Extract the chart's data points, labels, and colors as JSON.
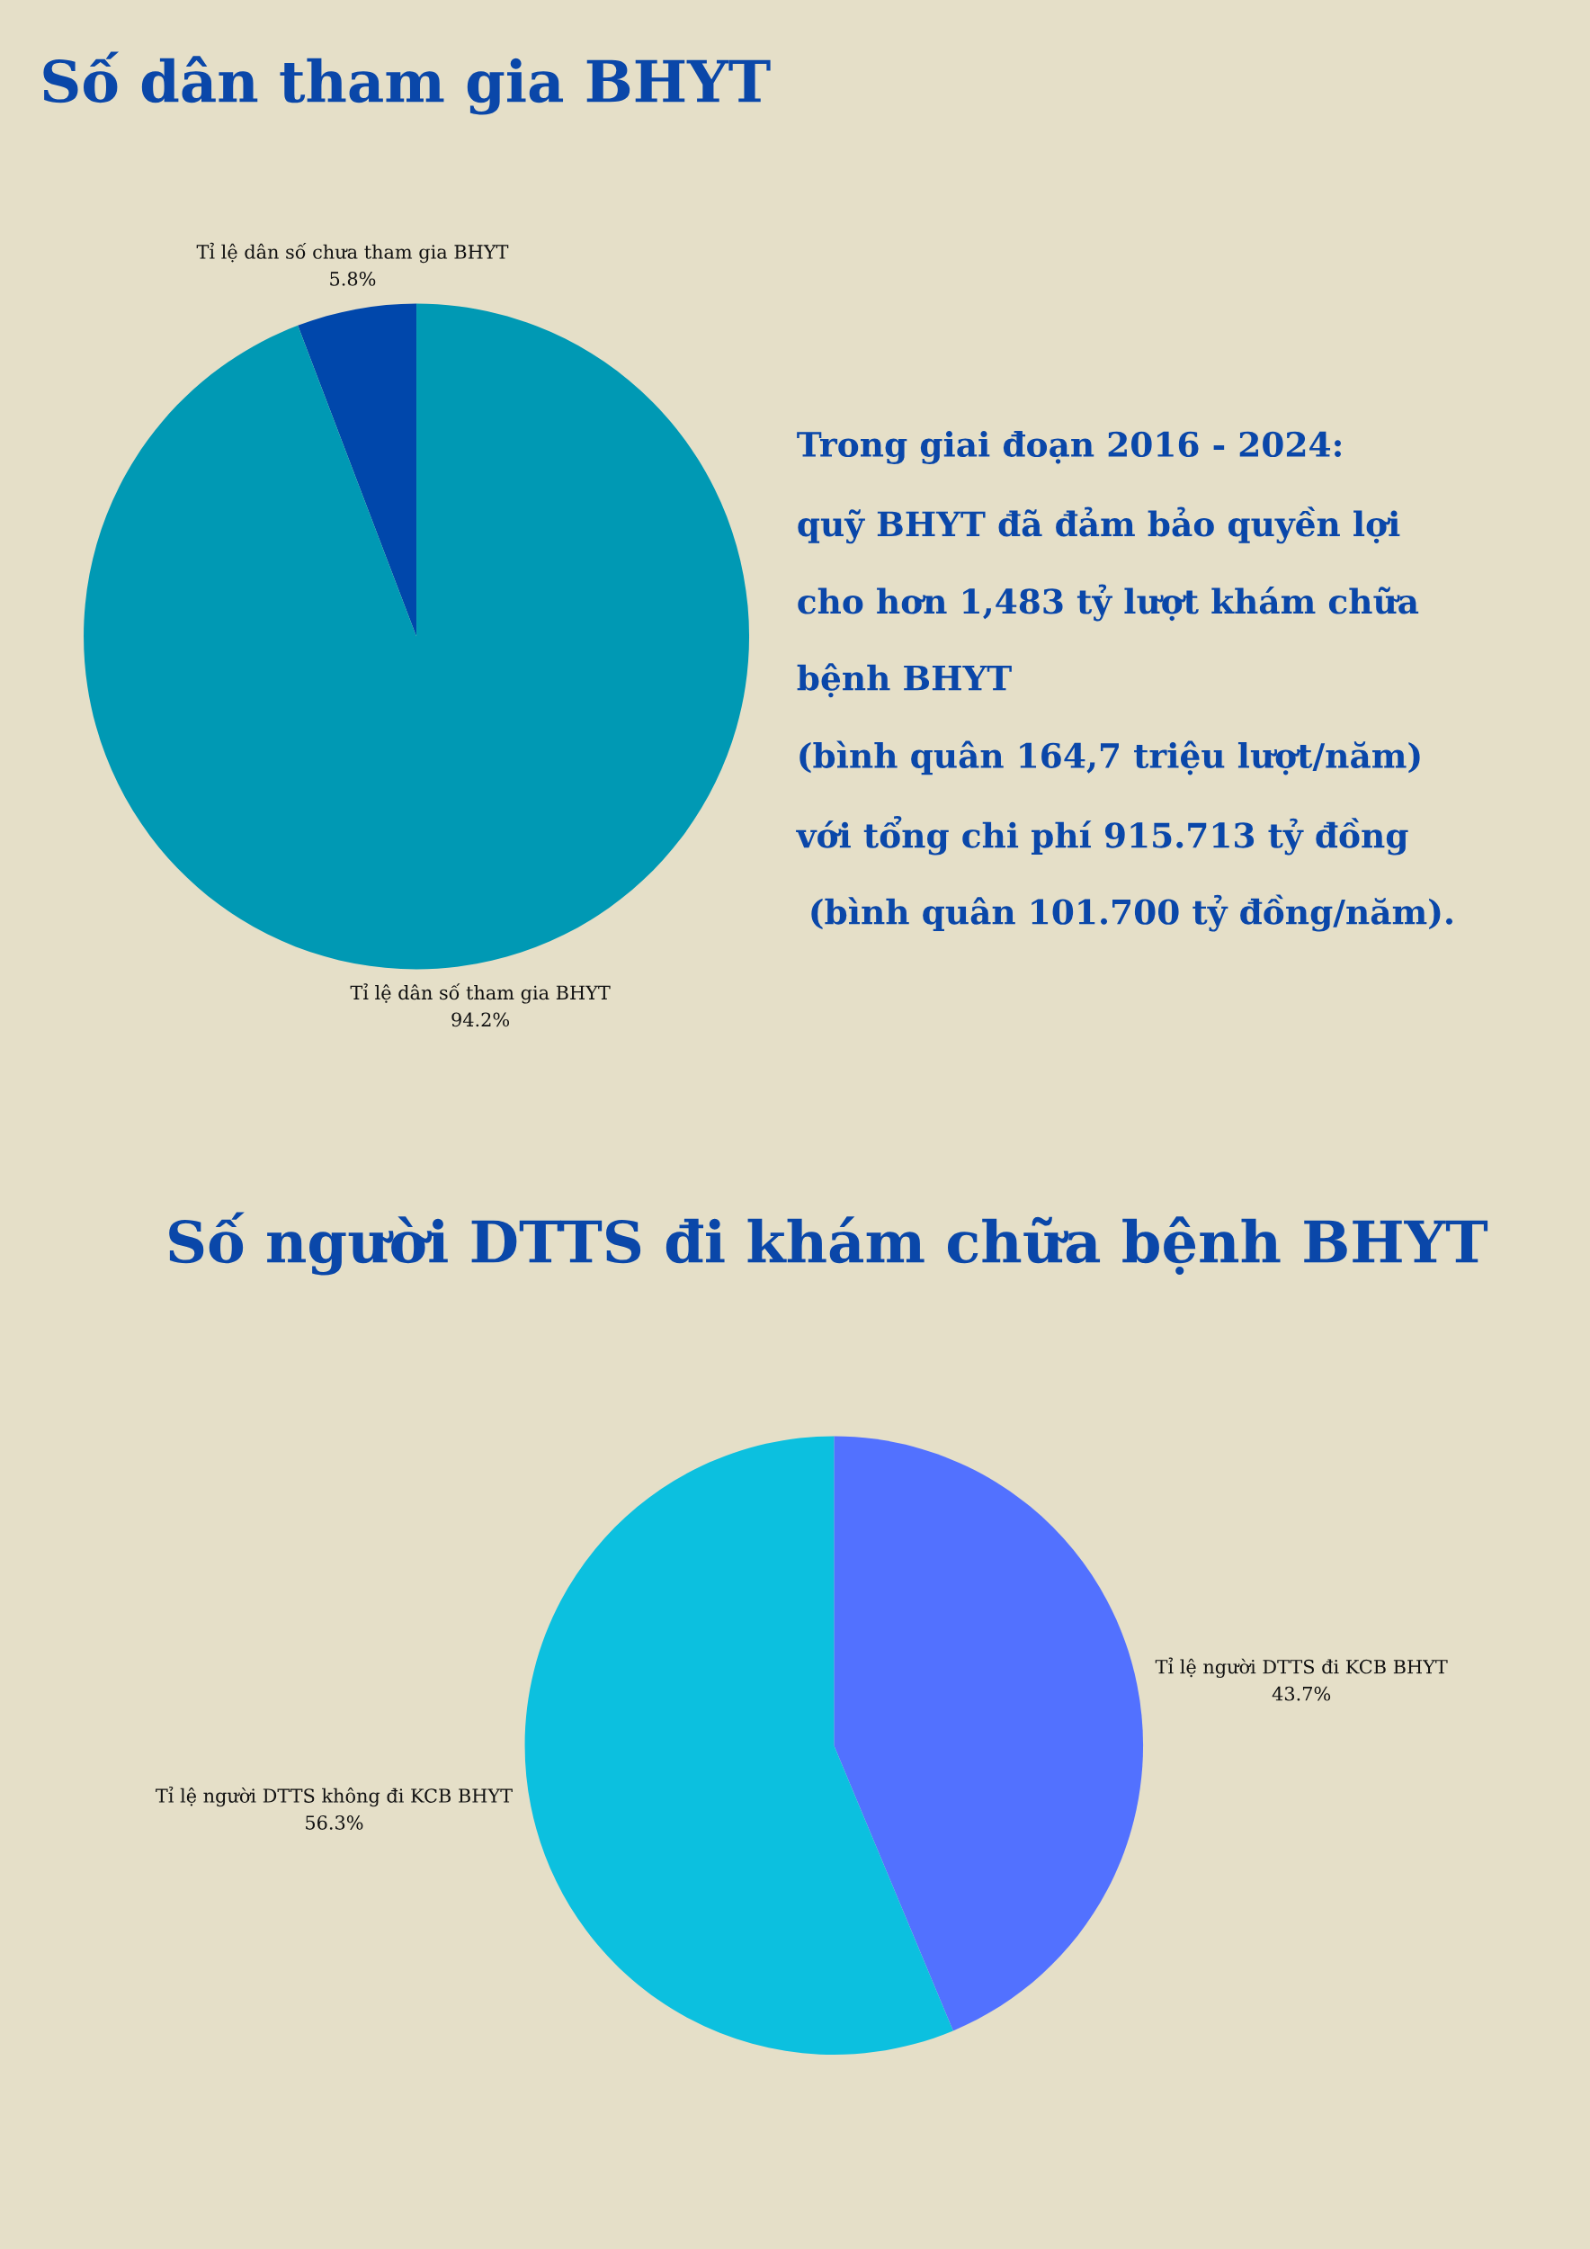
{
  "chart_data": [
    {
      "type": "pie",
      "title": "Số dân tham gia BHYT",
      "categories": [
        "Tỉ lệ dân số chưa tham gia BHYT",
        "Tỉ lệ dân số tham gia BHYT"
      ],
      "values": [
        5.8,
        94.2
      ],
      "colors": [
        "#0047ab",
        "#0099b4"
      ],
      "value_labels": [
        "5.8%",
        "94.2%"
      ]
    },
    {
      "type": "other",
      "annotations": [
        "Trong giai đoạn 2016 - 2024:",
        "quỹ BHYT đã đảm bảo quyền lợi",
        "cho hơn 1,483 tỷ lượt khám chữa",
        "bệnh BHYT",
        "(bình quân 164,7 triệu lượt/năm)",
        "với tổng chi phí 915.713 tỷ đồng",
        " (bình quân 101.700 tỷ đồng/năm)."
      ]
    },
    {
      "type": "pie",
      "title": "Số người DTTS đi khám chữa bệnh BHYT",
      "categories": [
        "Tỉ lệ người DTTS đi KCB BHYT",
        "Tỉ lệ người DTTS không đi KCB BHYT"
      ],
      "values": [
        43.7,
        56.3
      ],
      "colors": [
        "#5271ff",
        "#0cc0df"
      ],
      "value_labels": [
        "43.7%",
        "56.3%"
      ]
    }
  ]
}
